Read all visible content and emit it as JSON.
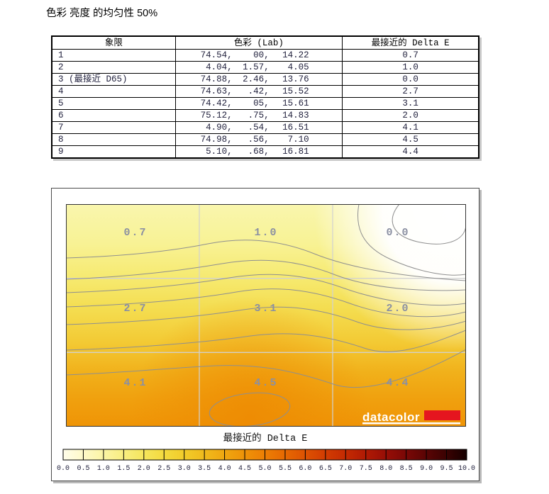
{
  "page": {
    "title": "色彩 亮度 的均匀性 50%"
  },
  "table": {
    "headers": [
      "象限",
      "色彩 (Lab)",
      "最接近的 Delta E"
    ],
    "rows": [
      {
        "quadrant": "1",
        "lab": [
          "74.54,",
          "00,",
          "14.22"
        ],
        "delta_e": "0.7"
      },
      {
        "quadrant": "2",
        "lab": [
          "4.04,",
          "1.57,",
          "4.05"
        ],
        "delta_e": "1.0"
      },
      {
        "quadrant": "3 (最接近 D65)",
        "lab": [
          "74.88,",
          "2.46,",
          "13.76"
        ],
        "delta_e": "0.0"
      },
      {
        "quadrant": "4",
        "lab": [
          "74.63,",
          ".42,",
          "15.52"
        ],
        "delta_e": "2.7"
      },
      {
        "quadrant": "5",
        "lab": [
          "74.42,",
          "05,",
          "15.61"
        ],
        "delta_e": "3.1"
      },
      {
        "quadrant": "6",
        "lab": [
          "75.12,",
          ".75,",
          "14.83"
        ],
        "delta_e": "2.0"
      },
      {
        "quadrant": "7",
        "lab": [
          "4.90,",
          ".54,",
          "16.51"
        ],
        "delta_e": "4.1"
      },
      {
        "quadrant": "8",
        "lab": [
          "74.98,",
          ".56,",
          "7.10"
        ],
        "delta_e": "4.5"
      },
      {
        "quadrant": "9",
        "lab": [
          "5.10,",
          ".68,",
          "16.81"
        ],
        "delta_e": "4.4"
      }
    ]
  },
  "chart_data": {
    "type": "heatmap",
    "title": "最接近的 Delta E",
    "description": "3x3 screen-uniformity contour map of nearest Delta E at 50% brightness; brightest (white) zone top-right = 0.0, deepest orange bottom-center = 4.5",
    "grid_rows": 3,
    "grid_cols": 3,
    "grid_values": [
      [
        0.7,
        1.0,
        0.0
      ],
      [
        2.7,
        3.1,
        2.0
      ],
      [
        4.1,
        4.5,
        4.4
      ]
    ],
    "label_color": "#8b90a2",
    "watermark": "datacolor",
    "watermark_bar_color": "#e5151f",
    "colorbar": {
      "min": 0.0,
      "max": 10.0,
      "step": 0.5,
      "tick_labels": [
        "0.0",
        "0.5",
        "1.0",
        "1.5",
        "2.0",
        "2.5",
        "3.0",
        "3.5",
        "4.0",
        "4.5",
        "5.0",
        "5.5",
        "6.0",
        "6.5",
        "7.0",
        "7.5",
        "8.0",
        "8.5",
        "9.0",
        "9.5",
        "10.0"
      ],
      "gradient_stops": [
        "#fffdea",
        "#fdf9c8",
        "#fbf4a4",
        "#f8ee80",
        "#f5e55c",
        "#f3da3e",
        "#f1cc2a",
        "#f0ba1c",
        "#efa610",
        "#ee9208",
        "#ec7e04",
        "#e66802",
        "#dd5202",
        "#d23c02",
        "#c42a02",
        "#b01a04",
        "#970e06",
        "#7a0806",
        "#5a0404",
        "#3a0202",
        "#150000"
      ]
    }
  }
}
